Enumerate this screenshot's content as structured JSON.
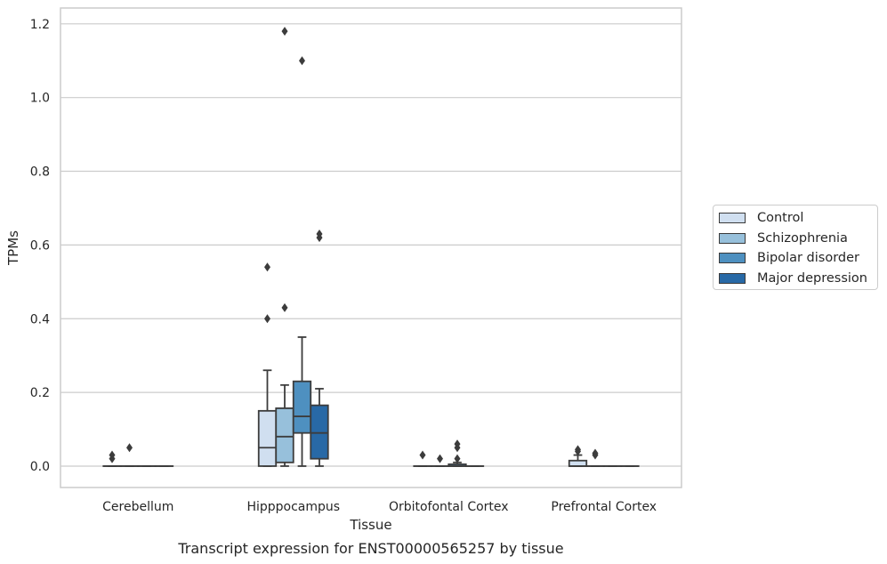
{
  "caption": "Transcript expression for ENST00000565257 by tissue",
  "chart_data": {
    "type": "box",
    "xlabel": "Tissue",
    "ylabel": "TPMs",
    "ylim": [
      -0.058,
      1.243
    ],
    "yticks": [
      "0.0",
      "0.2",
      "0.4",
      "0.6",
      "0.8",
      "1.0",
      "1.2"
    ],
    "ytick_values": [
      0.0,
      0.2,
      0.4,
      0.6,
      0.8,
      1.0,
      1.2
    ],
    "grid": true,
    "legend_position": "right",
    "categories": [
      "Cerebellum",
      "Hipppocampus",
      "Orbitofontal Cortex",
      "Prefrontal Cortex"
    ],
    "series": [
      {
        "name": "Control",
        "color": "#d0dff0",
        "boxes": [
          {
            "q1": 0.0,
            "median": 0.0,
            "q3": 0.0,
            "whislo": 0.0,
            "whishi": 0.0,
            "fliers": [
              0.02,
              0.03
            ]
          },
          {
            "q1": 0.0,
            "median": 0.05,
            "q3": 0.15,
            "whislo": 0.0,
            "whishi": 0.26,
            "fliers": [
              0.4,
              0.54
            ]
          },
          {
            "q1": 0.0,
            "median": 0.0,
            "q3": 0.0,
            "whislo": 0.0,
            "whishi": 0.0,
            "fliers": [
              0.03
            ]
          },
          {
            "q1": 0.0,
            "median": 0.0,
            "q3": 0.015,
            "whislo": 0.0,
            "whishi": 0.03,
            "fliers": [
              0.04,
              0.045
            ]
          }
        ]
      },
      {
        "name": "Schizophrenia",
        "color": "#97c0db",
        "boxes": [
          {
            "q1": 0.0,
            "median": 0.0,
            "q3": 0.0,
            "whislo": 0.0,
            "whishi": 0.0,
            "fliers": [
              0.05
            ]
          },
          {
            "q1": 0.01,
            "median": 0.08,
            "q3": 0.157,
            "whislo": 0.0,
            "whishi": 0.22,
            "fliers": [
              0.43,
              1.18
            ]
          },
          {
            "q1": 0.0,
            "median": 0.0,
            "q3": 0.0,
            "whislo": 0.0,
            "whishi": 0.0,
            "fliers": [
              0.02
            ]
          },
          {
            "q1": 0.0,
            "median": 0.0,
            "q3": 0.0,
            "whislo": 0.0,
            "whishi": 0.0,
            "fliers": [
              0.03,
              0.035
            ]
          }
        ]
      },
      {
        "name": "Bipolar disorder",
        "color": "#4e90c0",
        "boxes": [
          {
            "q1": 0.0,
            "median": 0.0,
            "q3": 0.0,
            "whislo": 0.0,
            "whishi": 0.0,
            "fliers": []
          },
          {
            "q1": 0.09,
            "median": 0.135,
            "q3": 0.23,
            "whislo": 0.0,
            "whishi": 0.35,
            "fliers": [
              1.1
            ]
          },
          {
            "q1": 0.0,
            "median": 0.0,
            "q3": 0.005,
            "whislo": 0.0,
            "whishi": 0.01,
            "fliers": [
              0.02,
              0.05,
              0.06
            ]
          },
          {
            "q1": 0.0,
            "median": 0.0,
            "q3": 0.0,
            "whislo": 0.0,
            "whishi": 0.0,
            "fliers": []
          }
        ]
      },
      {
        "name": "Major depression",
        "color": "#2869a6",
        "boxes": [
          {
            "q1": 0.0,
            "median": 0.0,
            "q3": 0.0,
            "whislo": 0.0,
            "whishi": 0.0,
            "fliers": []
          },
          {
            "q1": 0.02,
            "median": 0.09,
            "q3": 0.165,
            "whislo": 0.0,
            "whishi": 0.21,
            "fliers": [
              0.62,
              0.63
            ]
          },
          {
            "q1": 0.0,
            "median": 0.0,
            "q3": 0.0,
            "whislo": 0.0,
            "whishi": 0.0,
            "fliers": []
          },
          {
            "q1": 0.0,
            "median": 0.0,
            "q3": 0.0,
            "whislo": 0.0,
            "whishi": 0.0,
            "fliers": []
          }
        ]
      }
    ]
  }
}
